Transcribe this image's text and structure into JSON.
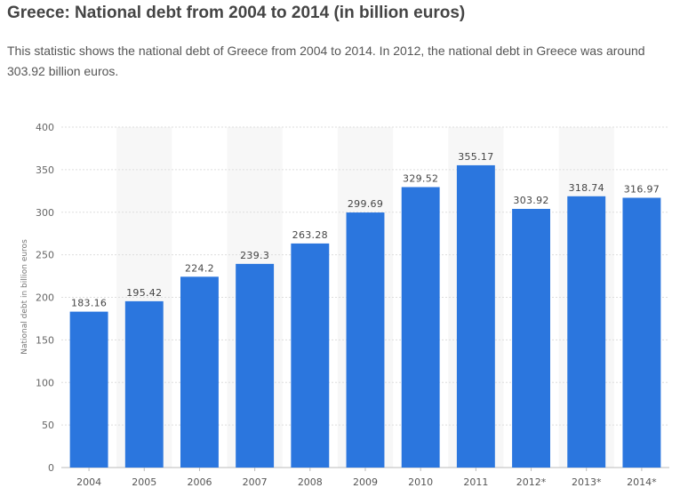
{
  "header": {
    "title": "Greece: National debt from 2004 to 2014 (in billion euros)",
    "description": "This statistic shows the national debt of Greece from 2004 to 2014. In 2012, the national debt in Greece was around 303.92 billion euros."
  },
  "colors": {
    "bar": "#2b76de",
    "band": "#f7f7f7",
    "grid": "#dddddd",
    "axis": "#bbbbbb"
  },
  "chart_data": {
    "type": "bar",
    "title": "Greece: National debt from 2004 to 2014 (in billion euros)",
    "xlabel": "",
    "ylabel": "National debt in billion euros",
    "categories": [
      "2004",
      "2005",
      "2006",
      "2007",
      "2008",
      "2009",
      "2010",
      "2011",
      "2012*",
      "2013*",
      "2014*"
    ],
    "values": [
      183.16,
      195.42,
      224.2,
      239.3,
      263.28,
      299.69,
      329.52,
      355.17,
      303.92,
      318.74,
      316.97
    ],
    "value_labels": [
      "183.16",
      "195.42",
      "224.2",
      "239.3",
      "263.28",
      "299.69",
      "329.52",
      "355.17",
      "303.92",
      "318.74",
      "316.97"
    ],
    "ylim": [
      0,
      400
    ],
    "yticks": [
      0,
      50,
      100,
      150,
      200,
      250,
      300,
      350,
      400
    ],
    "grid": true,
    "legend": "none"
  }
}
